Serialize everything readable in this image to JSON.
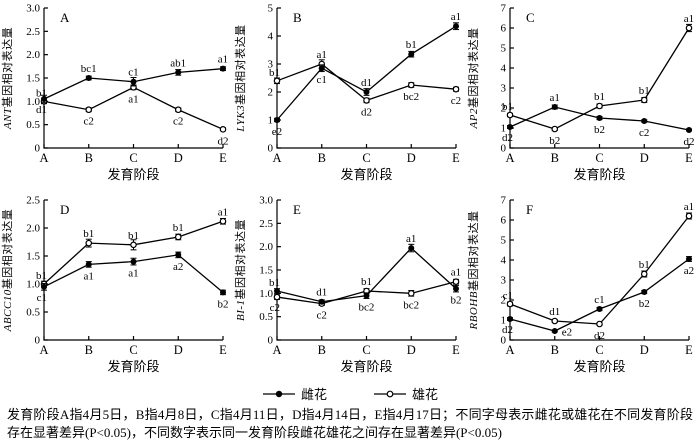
{
  "page": {
    "bg": "#ffffff",
    "fg": "#000000"
  },
  "legend": {
    "items": [
      {
        "label": "雌花",
        "marker": "filled-circle"
      },
      {
        "label": "雄花",
        "marker": "open-circle"
      }
    ]
  },
  "caption": {
    "line1": "发育阶段A指4月5日，B指4月8日，C指4月11日，D指4月14日，E指4月17日；不同字母表示雌花或雄花在",
    "line2": "不同发育阶段存在显著差异(P<0.05)，不同数字表示同一发育阶段雌花雄花之间存在显著差异(P<0.05)"
  },
  "chart_data": [
    {
      "type": "line",
      "panel": "A",
      "ylabel_gene": "ANT",
      "ylabel_text": "基因相对表达量",
      "xlabel": "发育阶段",
      "categories": [
        "A",
        "B",
        "C",
        "D",
        "E"
      ],
      "ylim": [
        0,
        3.0
      ],
      "yticks": [
        0,
        0.5,
        1.0,
        1.5,
        2.0,
        2.5,
        3.0
      ],
      "ytick_labels": [
        "0",
        "0.5",
        "1.0",
        "1.5",
        "2.0",
        "2.5",
        "3.0"
      ],
      "grid": false,
      "legend_position": "none",
      "series": [
        {
          "name": "雌花",
          "marker": "filled-circle",
          "values": [
            1.05,
            1.5,
            1.42,
            1.62,
            1.7
          ],
          "errors": [
            0.08,
            0.04,
            0.09,
            0.06,
            0.04
          ],
          "point_labels": [
            {
              "text": "d1",
              "pos": "left-below"
            },
            {
              "text": "bc1",
              "pos": "above"
            },
            {
              "text": "c1",
              "pos": "above"
            },
            {
              "text": "ab1",
              "pos": "above"
            },
            {
              "text": "a1",
              "pos": "above"
            }
          ]
        },
        {
          "name": "雄花",
          "marker": "open-circle",
          "values": [
            1.0,
            0.82,
            1.3,
            0.82,
            0.4
          ],
          "errors": [
            0.05,
            0.04,
            0.05,
            0.04,
            0.03
          ],
          "point_labels": [
            {
              "text": "b1",
              "pos": "left-above"
            },
            {
              "text": "c2",
              "pos": "below"
            },
            {
              "text": "a1",
              "pos": "below"
            },
            {
              "text": "c2",
              "pos": "below"
            },
            {
              "text": "d2",
              "pos": "below"
            }
          ]
        }
      ]
    },
    {
      "type": "line",
      "panel": "B",
      "ylabel_gene": "LYK3",
      "ylabel_text": "基因相对表达量",
      "xlabel": "发育阶段",
      "categories": [
        "A",
        "B",
        "C",
        "D",
        "E"
      ],
      "ylim": [
        0,
        5
      ],
      "yticks": [
        0,
        1,
        2,
        3,
        4,
        5
      ],
      "ytick_labels": [
        "0",
        "1",
        "2",
        "3",
        "4",
        "5"
      ],
      "grid": false,
      "legend_position": "none",
      "series": [
        {
          "name": "雌花",
          "marker": "filled-circle",
          "values": [
            1.0,
            2.85,
            2.0,
            3.35,
            4.35
          ],
          "errors": [
            0.06,
            0.12,
            0.12,
            0.1,
            0.12
          ],
          "point_labels": [
            {
              "text": "e2",
              "pos": "below"
            },
            {
              "text": "c1",
              "pos": "below"
            },
            {
              "text": "d1",
              "pos": "above"
            },
            {
              "text": "b1",
              "pos": "above"
            },
            {
              "text": "a1",
              "pos": "above"
            }
          ]
        },
        {
          "name": "雄花",
          "marker": "open-circle",
          "values": [
            2.4,
            3.0,
            1.7,
            2.25,
            2.1
          ],
          "errors": [
            0.1,
            0.15,
            0.08,
            0.08,
            0.07
          ],
          "point_labels": [
            {
              "text": "b1",
              "pos": "left-above"
            },
            {
              "text": "a1",
              "pos": "above"
            },
            {
              "text": "d2",
              "pos": "below"
            },
            {
              "text": "bc2",
              "pos": "below"
            },
            {
              "text": "c2",
              "pos": "below"
            }
          ]
        }
      ]
    },
    {
      "type": "line",
      "panel": "C",
      "ylabel_gene": "AP2",
      "ylabel_text": "基因相对表达量",
      "xlabel": "发育阶段",
      "categories": [
        "A",
        "B",
        "C",
        "D",
        "E"
      ],
      "ylim": [
        0,
        7
      ],
      "yticks": [
        0,
        1,
        2,
        3,
        4,
        5,
        6,
        7
      ],
      "ytick_labels": [
        "0",
        "1",
        "2",
        "3",
        "4",
        "5",
        "6",
        "7"
      ],
      "grid": false,
      "legend_position": "none",
      "series": [
        {
          "name": "雌花",
          "marker": "filled-circle",
          "values": [
            1.05,
            2.05,
            1.5,
            1.35,
            0.9
          ],
          "errors": [
            0.07,
            0.1,
            0.08,
            0.06,
            0.05
          ],
          "point_labels": [
            {
              "text": "d2",
              "pos": "left-below"
            },
            {
              "text": "a1",
              "pos": "above"
            },
            {
              "text": "b2",
              "pos": "below"
            },
            {
              "text": "c2",
              "pos": "below"
            },
            {
              "text": "d2",
              "pos": "below"
            }
          ]
        },
        {
          "name": "雄花",
          "marker": "open-circle",
          "values": [
            1.65,
            0.95,
            2.1,
            2.4,
            6.0
          ],
          "errors": [
            0.08,
            0.06,
            0.1,
            0.12,
            0.18
          ],
          "point_labels": [
            {
              "text": "b1",
              "pos": "left-above"
            },
            {
              "text": "b2",
              "pos": "below"
            },
            {
              "text": "b1",
              "pos": "above"
            },
            {
              "text": "b1",
              "pos": "above"
            },
            {
              "text": "a1",
              "pos": "above"
            }
          ]
        }
      ]
    },
    {
      "type": "line",
      "panel": "D",
      "ylabel_gene": "ABCC10",
      "ylabel_text": "基因相对表达量",
      "xlabel": "发育阶段",
      "categories": [
        "A",
        "B",
        "C",
        "D",
        "E"
      ],
      "ylim": [
        0,
        2.5
      ],
      "yticks": [
        0,
        0.5,
        1.0,
        1.5,
        2.0,
        2.5
      ],
      "ytick_labels": [
        "0",
        "0.5",
        "1.0",
        "1.5",
        "2.0",
        "2.5"
      ],
      "grid": false,
      "legend_position": "none",
      "series": [
        {
          "name": "雌花",
          "marker": "filled-circle",
          "values": [
            0.95,
            1.35,
            1.4,
            1.52,
            0.85
          ],
          "errors": [
            0.06,
            0.05,
            0.06,
            0.05,
            0.04
          ],
          "point_labels": [
            {
              "text": "c1",
              "pos": "left-below"
            },
            {
              "text": "a1",
              "pos": "below"
            },
            {
              "text": "a1",
              "pos": "below"
            },
            {
              "text": "a2",
              "pos": "below"
            },
            {
              "text": "b2",
              "pos": "below"
            }
          ]
        },
        {
          "name": "雄花",
          "marker": "open-circle",
          "values": [
            1.0,
            1.73,
            1.7,
            1.84,
            2.12
          ],
          "errors": [
            0.05,
            0.07,
            0.09,
            0.05,
            0.05
          ],
          "point_labels": [
            {
              "text": "b1",
              "pos": "left-above"
            },
            {
              "text": "b1",
              "pos": "above"
            },
            {
              "text": "b1",
              "pos": "above"
            },
            {
              "text": "b1",
              "pos": "above"
            },
            {
              "text": "a1",
              "pos": "above"
            }
          ]
        }
      ]
    },
    {
      "type": "line",
      "panel": "E",
      "ylabel_gene": "BI-1",
      "ylabel_text": "基因相对表达量",
      "xlabel": "发育阶段",
      "categories": [
        "A",
        "B",
        "C",
        "D",
        "E"
      ],
      "ylim": [
        0,
        3.0
      ],
      "yticks": [
        0,
        0.5,
        1.0,
        1.5,
        2.0,
        2.5,
        3.0
      ],
      "ytick_labels": [
        "0",
        "0.5",
        "1.0",
        "1.5",
        "2.0",
        "2.5",
        "3.0"
      ],
      "grid": false,
      "legend_position": "none",
      "series": [
        {
          "name": "雌花",
          "marker": "filled-circle",
          "values": [
            1.05,
            0.82,
            0.95,
            1.97,
            1.1
          ],
          "errors": [
            0.05,
            0.04,
            0.06,
            0.08,
            0.07
          ],
          "point_labels": [
            {
              "text": "b1",
              "pos": "left-above"
            },
            {
              "text": "d1",
              "pos": "above"
            },
            {
              "text": "bc2",
              "pos": "below"
            },
            {
              "text": "a1",
              "pos": "above"
            },
            {
              "text": "b2",
              "pos": "below"
            }
          ]
        },
        {
          "name": "雄花",
          "marker": "open-circle",
          "values": [
            0.92,
            0.78,
            1.05,
            1.0,
            1.25
          ],
          "errors": [
            0.05,
            0.04,
            0.05,
            0.06,
            0.05
          ],
          "point_labels": [
            {
              "text": "c2",
              "pos": "left-below"
            },
            {
              "text": "c2",
              "pos": "below"
            },
            {
              "text": "b1",
              "pos": "above"
            },
            {
              "text": "bc2",
              "pos": "below"
            },
            {
              "text": "a1",
              "pos": "above"
            }
          ]
        }
      ]
    },
    {
      "type": "line",
      "panel": "F",
      "ylabel_gene": "RBOHB",
      "ylabel_text": "基因相对表达量",
      "xlabel": "发育阶段",
      "categories": [
        "A",
        "B",
        "C",
        "D",
        "E"
      ],
      "ylim": [
        0,
        7
      ],
      "yticks": [
        0,
        1,
        2,
        3,
        4,
        5,
        6,
        7
      ],
      "ytick_labels": [
        "0",
        "1",
        "2",
        "3",
        "4",
        "5",
        "6",
        "7"
      ],
      "grid": false,
      "legend_position": "none",
      "series": [
        {
          "name": "雌花",
          "marker": "filled-circle",
          "values": [
            1.05,
            0.45,
            1.55,
            2.4,
            4.05
          ],
          "errors": [
            0.07,
            0.05,
            0.08,
            0.08,
            0.12
          ],
          "point_labels": [
            {
              "text": "d2",
              "pos": "left-below"
            },
            {
              "text": "e2",
              "pos": "right"
            },
            {
              "text": "c1",
              "pos": "above"
            },
            {
              "text": "b2",
              "pos": "below"
            },
            {
              "text": "a2",
              "pos": "below"
            }
          ]
        },
        {
          "name": "雄花",
          "marker": "open-circle",
          "values": [
            1.8,
            0.95,
            0.8,
            3.3,
            6.2
          ],
          "errors": [
            0.1,
            0.06,
            0.06,
            0.15,
            0.15
          ],
          "point_labels": [
            {
              "text": "c1",
              "pos": "left-above"
            },
            {
              "text": "d1",
              "pos": "above"
            },
            {
              "text": "d2",
              "pos": "below"
            },
            {
              "text": "b1",
              "pos": "above"
            },
            {
              "text": "a1",
              "pos": "above"
            }
          ]
        }
      ]
    }
  ]
}
